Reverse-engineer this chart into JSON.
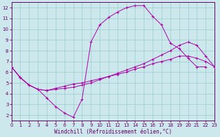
{
  "xlabel": "Windchill (Refroidissement éolien,°C)",
  "bg_color": "#cce8ec",
  "grid_color": "#99cccc",
  "line_color": "#aa00aa",
  "spine_color": "#660066",
  "xlim": [
    0,
    23
  ],
  "ylim": [
    1.5,
    12.5
  ],
  "xticks": [
    0,
    1,
    2,
    3,
    4,
    5,
    6,
    7,
    8,
    9,
    10,
    11,
    12,
    13,
    14,
    15,
    16,
    17,
    18,
    19,
    20,
    21,
    22,
    23
  ],
  "yticks": [
    2,
    3,
    4,
    5,
    6,
    7,
    8,
    9,
    10,
    11,
    12
  ],
  "line1_x": [
    0,
    1,
    2,
    3,
    4,
    5,
    6,
    7,
    8,
    9,
    10,
    11,
    12,
    13,
    14,
    15,
    16,
    17,
    18,
    19,
    20,
    21,
    22
  ],
  "line1_y": [
    6.5,
    5.5,
    4.8,
    4.4,
    3.6,
    2.8,
    2.2,
    1.8,
    3.5,
    8.8,
    10.4,
    11.1,
    11.6,
    12.0,
    12.2,
    12.2,
    11.2,
    10.4,
    8.7,
    8.2,
    7.3,
    6.5,
    6.5
  ],
  "line2_x": [
    0,
    1,
    2,
    3,
    4,
    5,
    6,
    7,
    8,
    9,
    10,
    11,
    12,
    13,
    14,
    15,
    16,
    17,
    18,
    19,
    20,
    21,
    22,
    23
  ],
  "line2_y": [
    6.5,
    5.5,
    4.8,
    4.4,
    4.3,
    4.5,
    4.7,
    4.9,
    5.0,
    5.2,
    5.4,
    5.6,
    5.8,
    6.0,
    6.3,
    6.5,
    6.8,
    7.0,
    7.2,
    7.5,
    7.5,
    7.3,
    7.0,
    6.5
  ],
  "line3_x": [
    0,
    1,
    2,
    3,
    4,
    5,
    6,
    7,
    8,
    9,
    10,
    11,
    12,
    13,
    14,
    15,
    16,
    17,
    18,
    19,
    20,
    21,
    22,
    23
  ],
  "line3_y": [
    6.5,
    5.5,
    4.8,
    4.4,
    4.3,
    4.4,
    4.5,
    4.6,
    4.8,
    5.0,
    5.3,
    5.6,
    5.9,
    6.2,
    6.5,
    6.8,
    7.2,
    7.6,
    8.0,
    8.5,
    8.8,
    8.5,
    7.5,
    6.5
  ]
}
